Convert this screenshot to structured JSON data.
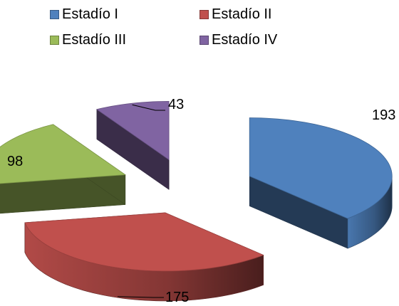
{
  "chart_data": {
    "type": "pie",
    "style": "3d-exploded",
    "categories": [
      "Estadío I",
      "Estadío II",
      "Estadío III",
      "Estadío IV"
    ],
    "values": [
      193,
      175,
      98,
      43
    ],
    "data_labels": [
      "193",
      "175",
      "98",
      "43"
    ],
    "colors": [
      "#4F81BD",
      "#C0504D",
      "#9BBB59",
      "#8064A2"
    ],
    "legend_position": "top",
    "title": ""
  },
  "legend": {
    "items": [
      {
        "label": "Estadío I",
        "color": "#4F81BD"
      },
      {
        "label": "Estadío II",
        "color": "#C0504D"
      },
      {
        "label": "Estadío III",
        "color": "#9BBB59"
      },
      {
        "label": "Estadío IV",
        "color": "#8064A2"
      }
    ]
  }
}
